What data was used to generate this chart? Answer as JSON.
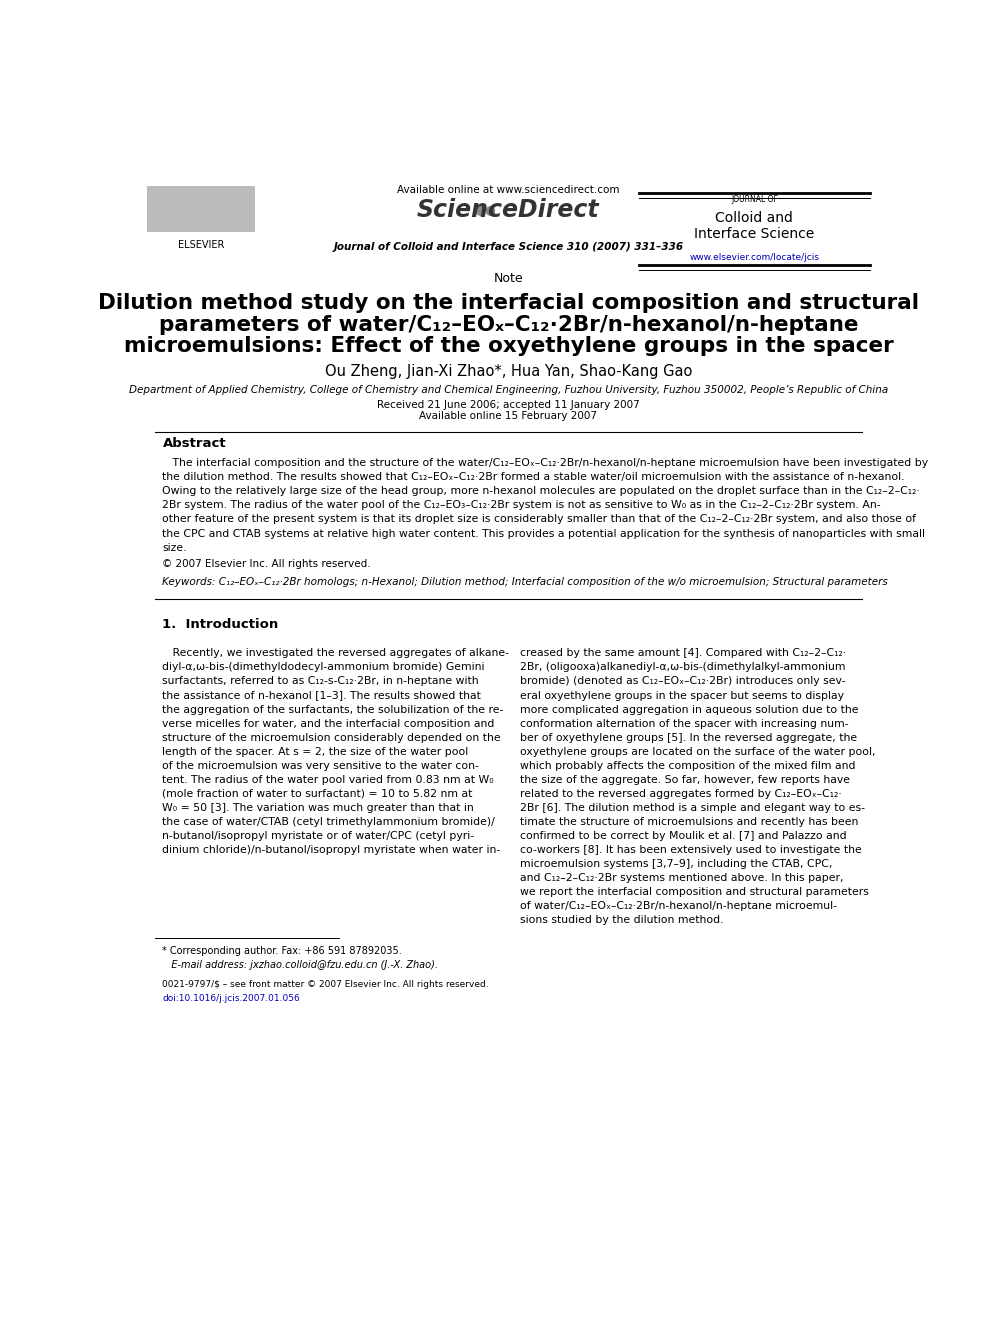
{
  "bg_color": "#ffffff",
  "page_width": 9.92,
  "page_height": 13.23,
  "header": {
    "available_online_text": "Available online at www.sciencedirect.com",
    "journal_name_line1": "Journal of Colloid and Interface Science 310 (2007) 331–336",
    "journal_box_line1": "JOURNAL OF",
    "journal_box_line2": "Colloid and",
    "journal_box_line3": "Interface Science",
    "journal_url": "www.elsevier.com/locate/jcis",
    "sciencedirect_text": "ScienceDirect"
  },
  "section_label": "Note",
  "title_lines": [
    "Dilution method study on the interfacial composition and structural",
    "parameters of water/C₁₂–EOₓ–C₁₂·2Br/n-hexanol/n-heptane",
    "microemulsions: Effect of the oxyethylene groups in the spacer"
  ],
  "authors": "Ou Zheng, Jian-Xi Zhao*, Hua Yan, Shao-Kang Gao",
  "affiliation": "Department of Applied Chemistry, College of Chemistry and Chemical Engineering, Fuzhou University, Fuzhou 350002, People’s Republic of China",
  "received": "Received 21 June 2006; accepted 11 January 2007",
  "available_online": "Available online 15 February 2007",
  "abstract_title": "Abstract",
  "copyright": "© 2007 Elsevier Inc. All rights reserved.",
  "keywords_text": "Keywords: C₁₂–EOₓ–C₁₂·2Br homologs; n-Hexanol; Dilution method; Interfacial composition of the w/o microemulsion; Structural parameters",
  "intro_title": "1.  Introduction",
  "intro_left": [
    "   Recently, we investigated the reversed aggregates of alkane-",
    "diyl-α,ω-bis-(dimethyldodecyl-ammonium bromide) Gemini",
    "surfactants, referred to as C₁₂-s-C₁₂·2Br, in n-heptane with",
    "the assistance of n-hexanol [1–3]. The results showed that",
    "the aggregation of the surfactants, the solubilization of the re-",
    "verse micelles for water, and the interfacial composition and",
    "structure of the microemulsion considerably depended on the",
    "length of the spacer. At s = 2, the size of the water pool",
    "of the microemulsion was very sensitive to the water con-",
    "tent. The radius of the water pool varied from 0.83 nm at W₀",
    "(mole fraction of water to surfactant) = 10 to 5.82 nm at",
    "W₀ = 50 [3]. The variation was much greater than that in",
    "the case of water/CTAB (cetyl trimethylammonium bromide)/",
    "n-butanol/isopropyl myristate or of water/CPC (cetyl pyri-",
    "dinium chloride)/n-butanol/isopropyl myristate when water in-"
  ],
  "intro_right": [
    "creased by the same amount [4]. Compared with C₁₂–2–C₁₂·",
    "2Br, (oligooxa)alkanediyl-α,ω-bis-(dimethylalkyl-ammonium",
    "bromide) (denoted as C₁₂–EOₓ–C₁₂·2Br) introduces only sev-",
    "eral oxyethylene groups in the spacer but seems to display",
    "more complicated aggregation in aqueous solution due to the",
    "conformation alternation of the spacer with increasing num-",
    "ber of oxyethylene groups [5]. In the reversed aggregate, the",
    "oxyethylene groups are located on the surface of the water pool,",
    "which probably affects the composition of the mixed film and",
    "the size of the aggregate. So far, however, few reports have",
    "related to the reversed aggregates formed by C₁₂–EOₓ–C₁₂·",
    "2Br [6]. The dilution method is a simple and elegant way to es-",
    "timate the structure of microemulsions and recently has been",
    "confirmed to be correct by Moulik et al. [7] and Palazzo and",
    "co-workers [8]. It has been extensively used to investigate the",
    "microemulsion systems [3,7–9], including the CTAB, CPC,",
    "and C₁₂–2–C₁₂·2Br systems mentioned above. In this paper,",
    "we report the interfacial composition and structural parameters",
    "of water/C₁₂–EOₓ–C₁₂·2Br/n-hexanol/n-heptane microemul-",
    "sions studied by the dilution method."
  ],
  "abstract_lines": [
    "   The interfacial composition and the structure of the water/C₁₂–EOₓ–C₁₂·2Br/n-hexanol/n-heptane microemulsion have been investigated by",
    "the dilution method. The results showed that C₁₂–EOₓ–C₁₂·2Br formed a stable water/oil microemulsion with the assistance of n-hexanol.",
    "Owing to the relatively large size of the head group, more n-hexanol molecules are populated on the droplet surface than in the C₁₂–2–C₁₂·",
    "2Br system. The radius of the water pool of the C₁₂–EO₃–C₁₂·2Br system is not as sensitive to W₀ as in the C₁₂–2–C₁₂·2Br system. An-",
    "other feature of the present system is that its droplet size is considerably smaller than that of the C₁₂–2–C₁₂·2Br system, and also those of",
    "the CPC and CTAB systems at relative high water content. This provides a potential application for the synthesis of nanoparticles with small",
    "size."
  ],
  "footnote_star": "* Corresponding author. Fax: +86 591 87892035.",
  "footnote_email": "   E-mail address: jxzhao.colloid@fzu.edu.cn (J.-X. Zhao).",
  "footnote_issn": "0021-9797/$ – see front matter © 2007 Elsevier Inc. All rights reserved.",
  "footnote_doi": "doi:10.1016/j.jcis.2007.01.056"
}
